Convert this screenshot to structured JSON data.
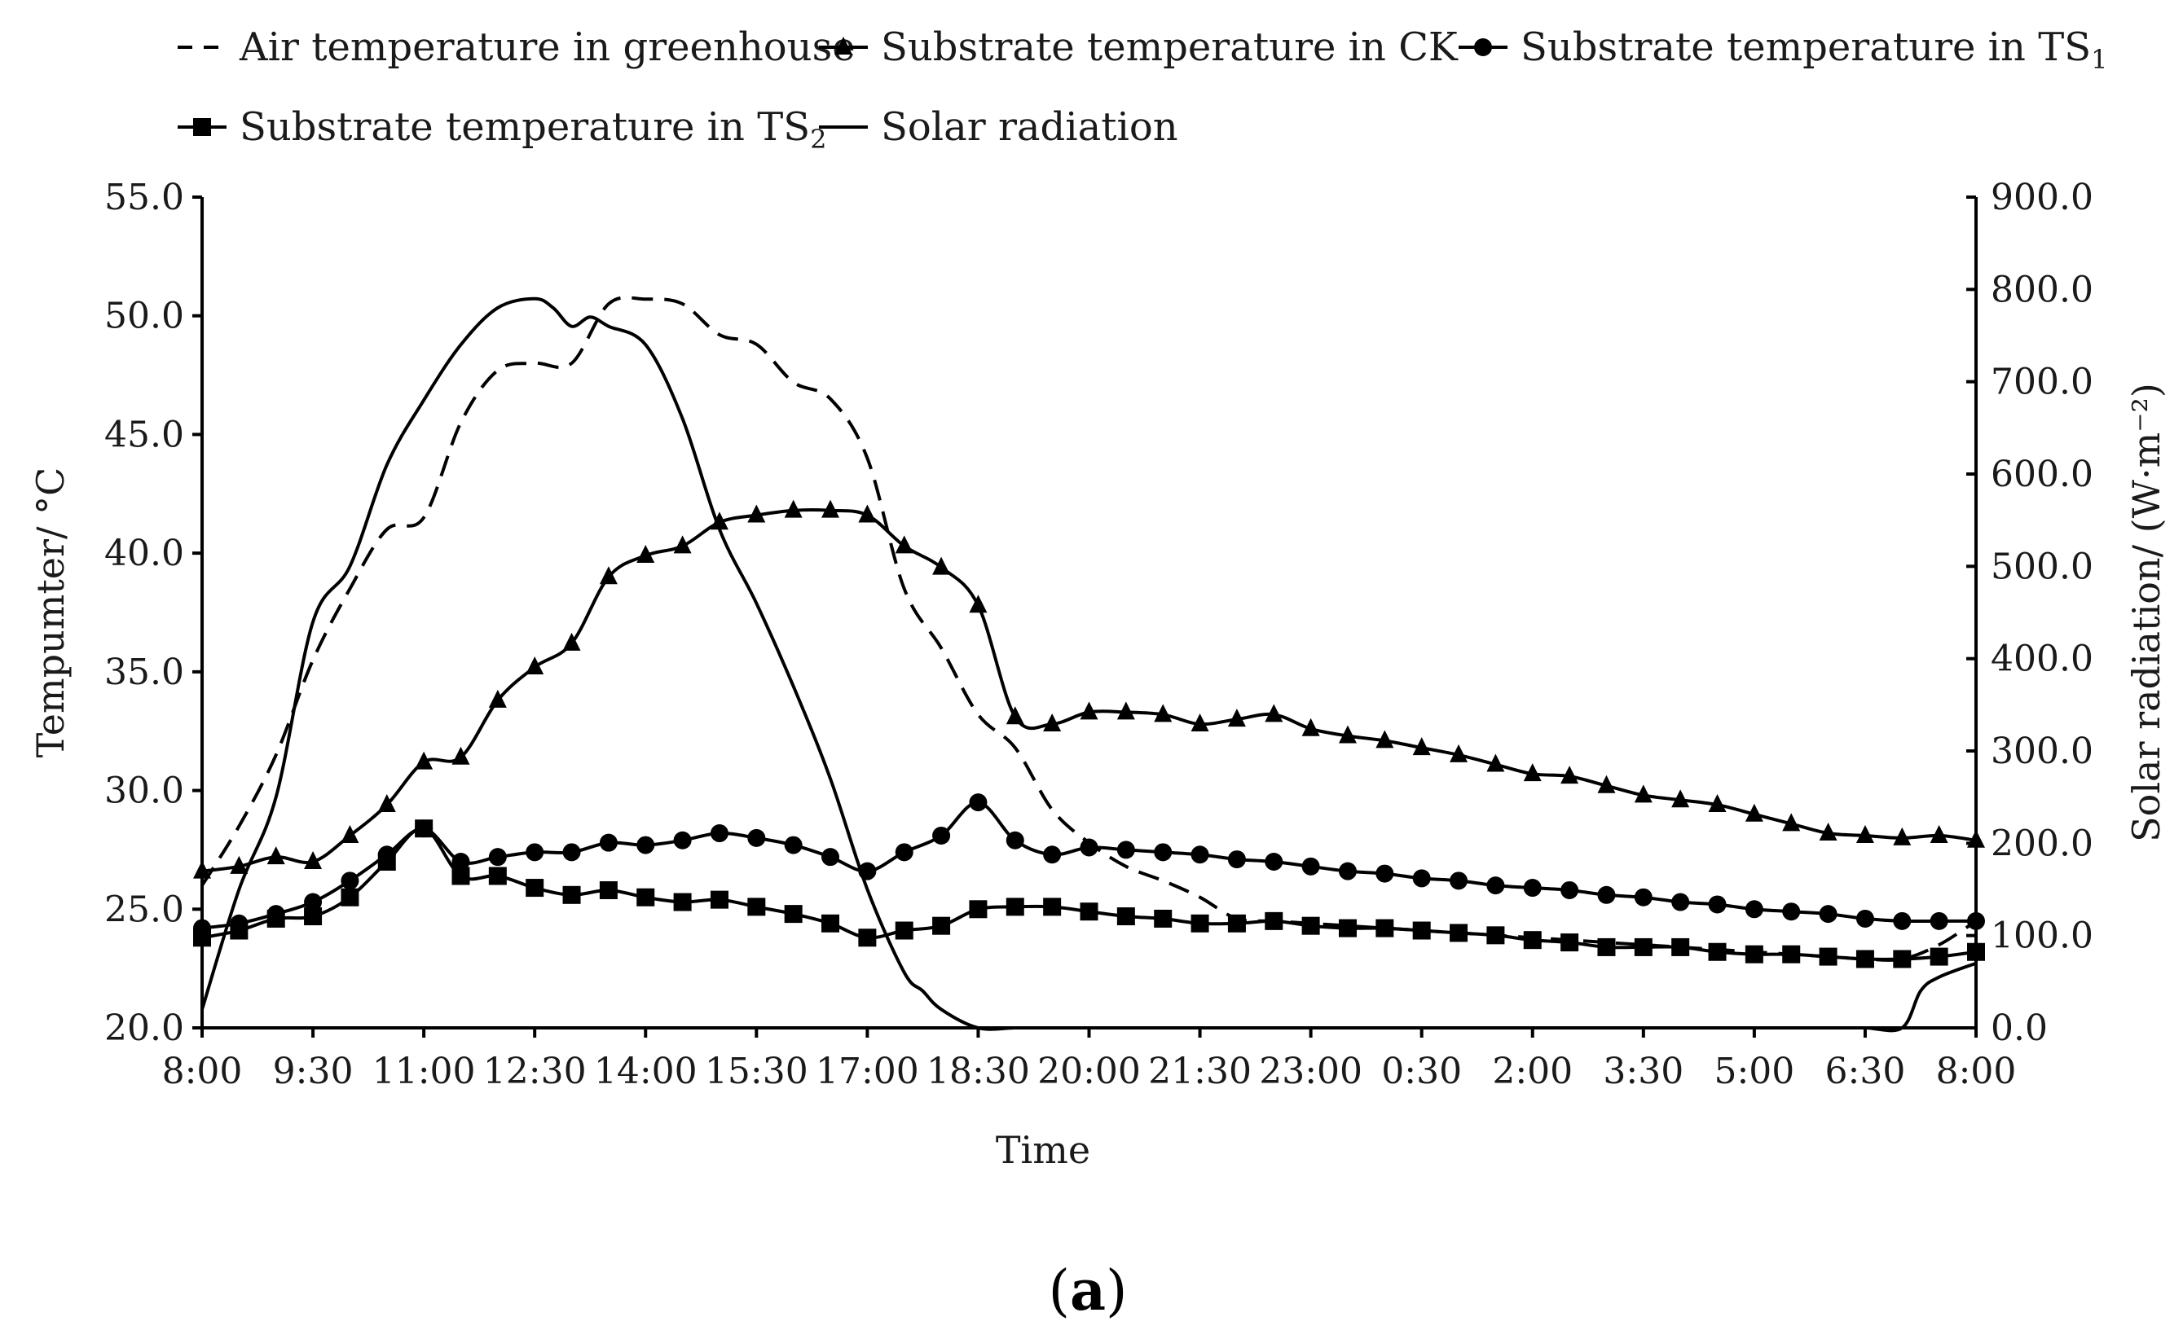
{
  "colors": {
    "line": "#000000",
    "text": "#1a1a1a",
    "background": "#ffffff"
  },
  "panel_label": {
    "open": "(",
    "letter": "a",
    "close": ")"
  },
  "chart_data": {
    "type": "line",
    "title": "",
    "xlabel": "Time",
    "ylabel": "Tempumter/ °C",
    "y2label": "Solar radiation/ (W·m⁻²)",
    "ylim": [
      20.0,
      55.0
    ],
    "y2lim": [
      0.0,
      900.0
    ],
    "yticks": [
      "20.0",
      "25.0",
      "30.0",
      "35.0",
      "40.0",
      "45.0",
      "50.0",
      "55.0"
    ],
    "y2ticks": [
      "0.0",
      "100.0",
      "200.0",
      "300.0",
      "400.0",
      "500.0",
      "600.0",
      "700.0",
      "800.0",
      "900.0"
    ],
    "x_range_hours": [
      0,
      24
    ],
    "xticks": [
      {
        "hour": 0,
        "label": "8:00"
      },
      {
        "hour": 1.5,
        "label": "9:30"
      },
      {
        "hour": 3,
        "label": "11:00"
      },
      {
        "hour": 4.5,
        "label": "12:30"
      },
      {
        "hour": 6,
        "label": "14:00"
      },
      {
        "hour": 7.5,
        "label": "15:30"
      },
      {
        "hour": 9,
        "label": "17:00"
      },
      {
        "hour": 10.5,
        "label": "18:30"
      },
      {
        "hour": 12,
        "label": "20:00"
      },
      {
        "hour": 13.5,
        "label": "21:30"
      },
      {
        "hour": 15,
        "label": "23:00"
      },
      {
        "hour": 16.5,
        "label": "0:30"
      },
      {
        "hour": 18,
        "label": "2:00"
      },
      {
        "hour": 19.5,
        "label": "3:30"
      },
      {
        "hour": 21,
        "label": "5:00"
      },
      {
        "hour": 22.5,
        "label": "6:30"
      },
      {
        "hour": 24,
        "label": "8:00"
      }
    ],
    "legend": [
      {
        "series": "air",
        "label": "Air temperature in greenhouse",
        "sub": ""
      },
      {
        "series": "ck",
        "label": "Substrate temperature in CK",
        "sub": ""
      },
      {
        "series": "ts1",
        "label": "Substrate temperature in TS",
        "sub": "1"
      },
      {
        "series": "ts2",
        "label": "Substrate temperature in TS",
        "sub": "2"
      },
      {
        "series": "solar",
        "label": "Solar radiation",
        "sub": ""
      }
    ],
    "legend_position": "top",
    "series": [
      {
        "key": "air",
        "name": "Air temperature in greenhouse",
        "axis": "left",
        "style": "dashed",
        "marker": "none",
        "x": [
          0,
          0.5,
          1,
          1.5,
          2,
          2.5,
          3,
          3.5,
          4,
          4.5,
          5,
          5.5,
          6,
          6.5,
          7,
          7.5,
          8,
          8.5,
          9,
          9.5,
          10,
          10.5,
          11,
          11.5,
          12,
          12.5,
          13,
          13.5,
          14,
          14.5,
          15,
          15.5,
          16,
          16.5,
          17,
          17.5,
          18,
          18.5,
          19,
          19.5,
          20,
          20.5,
          21,
          21.5,
          22,
          22.5,
          23,
          23.5,
          24
        ],
        "y": [
          26.0,
          28.5,
          31.5,
          35.5,
          38.5,
          41.0,
          41.5,
          45.5,
          47.7,
          48.0,
          48.0,
          50.5,
          50.7,
          50.5,
          49.2,
          48.8,
          47.2,
          46.5,
          44.0,
          38.5,
          36.0,
          33.2,
          31.8,
          29.2,
          27.8,
          26.8,
          26.2,
          25.5,
          24.6,
          24.5,
          24.4,
          24.3,
          24.2,
          24.1,
          24.0,
          23.9,
          23.8,
          23.7,
          23.6,
          23.5,
          23.4,
          23.3,
          23.2,
          23.1,
          23.0,
          22.9,
          22.9,
          23.5,
          24.5
        ]
      },
      {
        "key": "ck",
        "name": "Substrate temperature in CK",
        "axis": "left",
        "style": "solid",
        "marker": "triangle",
        "x": [
          0,
          0.5,
          1,
          1.5,
          2,
          2.5,
          3,
          3.5,
          4,
          4.5,
          5,
          5.5,
          6,
          6.5,
          7,
          7.5,
          8,
          8.5,
          9,
          9.5,
          10,
          10.5,
          11,
          11.5,
          12,
          12.5,
          13,
          13.5,
          14,
          14.5,
          15,
          15.5,
          16,
          16.5,
          17,
          17.5,
          18,
          18.5,
          19,
          19.5,
          20,
          20.5,
          21,
          21.5,
          22,
          22.5,
          23,
          23.5,
          24
        ],
        "y": [
          26.6,
          26.8,
          27.2,
          27.0,
          28.1,
          29.4,
          31.2,
          31.4,
          33.8,
          35.2,
          36.2,
          39.0,
          39.9,
          40.3,
          41.3,
          41.6,
          41.8,
          41.8,
          41.6,
          40.3,
          39.4,
          37.8,
          33.1,
          32.8,
          33.3,
          33.3,
          33.2,
          32.8,
          33.0,
          33.2,
          32.6,
          32.3,
          32.1,
          31.8,
          31.5,
          31.1,
          30.7,
          30.6,
          30.2,
          29.8,
          29.6,
          29.4,
          29.0,
          28.6,
          28.2,
          28.1,
          28.0,
          28.1,
          27.9
        ]
      },
      {
        "key": "ts1",
        "name": "Substrate temperature in TS1",
        "axis": "left",
        "style": "solid",
        "marker": "circle",
        "x": [
          0,
          0.5,
          1,
          1.5,
          2,
          2.5,
          3,
          3.5,
          4,
          4.5,
          5,
          5.5,
          6,
          6.5,
          7,
          7.5,
          8,
          8.5,
          9,
          9.5,
          10,
          10.5,
          11,
          11.5,
          12,
          12.5,
          13,
          13.5,
          14,
          14.5,
          15,
          15.5,
          16,
          16.5,
          17,
          17.5,
          18,
          18.5,
          19,
          19.5,
          20,
          20.5,
          21,
          21.5,
          22,
          22.5,
          23,
          23.5,
          24
        ],
        "y": [
          24.2,
          24.4,
          24.8,
          25.3,
          26.2,
          27.3,
          28.4,
          27.0,
          27.2,
          27.4,
          27.4,
          27.8,
          27.7,
          27.9,
          28.2,
          28.0,
          27.7,
          27.2,
          26.6,
          27.4,
          28.1,
          29.5,
          27.9,
          27.3,
          27.6,
          27.5,
          27.4,
          27.3,
          27.1,
          27.0,
          26.8,
          26.6,
          26.5,
          26.3,
          26.2,
          26.0,
          25.9,
          25.8,
          25.6,
          25.5,
          25.3,
          25.2,
          25.0,
          24.9,
          24.8,
          24.6,
          24.5,
          24.5,
          24.5
        ]
      },
      {
        "key": "ts2",
        "name": "Substrate temperature in TS2",
        "axis": "left",
        "style": "solid",
        "marker": "square",
        "x": [
          0,
          0.5,
          1,
          1.5,
          2,
          2.5,
          3,
          3.5,
          4,
          4.5,
          5,
          5.5,
          6,
          6.5,
          7,
          7.5,
          8,
          8.5,
          9,
          9.5,
          10,
          10.5,
          11,
          11.5,
          12,
          12.5,
          13,
          13.5,
          14,
          14.5,
          15,
          15.5,
          16,
          16.5,
          17,
          17.5,
          18,
          18.5,
          19,
          19.5,
          20,
          20.5,
          21,
          21.5,
          22,
          22.5,
          23,
          23.5,
          24
        ],
        "y": [
          23.8,
          24.1,
          24.6,
          24.7,
          25.5,
          27.0,
          28.4,
          26.4,
          26.4,
          25.9,
          25.6,
          25.8,
          25.5,
          25.3,
          25.4,
          25.1,
          24.8,
          24.4,
          23.8,
          24.1,
          24.3,
          25.0,
          25.1,
          25.1,
          24.9,
          24.7,
          24.6,
          24.4,
          24.4,
          24.5,
          24.3,
          24.2,
          24.2,
          24.1,
          24.0,
          23.9,
          23.7,
          23.6,
          23.4,
          23.4,
          23.4,
          23.2,
          23.1,
          23.1,
          23.0,
          22.9,
          22.9,
          23.0,
          23.2
        ]
      },
      {
        "key": "solar",
        "name": "Solar radiation",
        "axis": "right",
        "style": "solid",
        "marker": "none",
        "x": [
          0,
          0.5,
          1,
          1.5,
          2,
          2.5,
          3,
          3.5,
          4,
          4.5,
          4.75,
          5,
          5.25,
          5.5,
          6,
          6.5,
          7,
          7.5,
          8,
          8.5,
          9,
          9.5,
          9.75,
          10,
          10.5,
          11,
          11.5,
          12,
          12.5,
          13,
          14,
          15,
          16,
          17,
          18,
          19,
          20,
          21,
          22,
          22.5,
          23,
          23.25,
          23.5,
          24
        ],
        "y": [
          20,
          150,
          250,
          440,
          500,
          610,
          680,
          740,
          780,
          790,
          780,
          760,
          770,
          760,
          740,
          660,
          540,
          460,
          370,
          270,
          150,
          60,
          40,
          20,
          0,
          0,
          0,
          0,
          0,
          0,
          0,
          0,
          0,
          0,
          0,
          0,
          0,
          0,
          0,
          0,
          0,
          40,
          55,
          70
        ]
      }
    ]
  }
}
